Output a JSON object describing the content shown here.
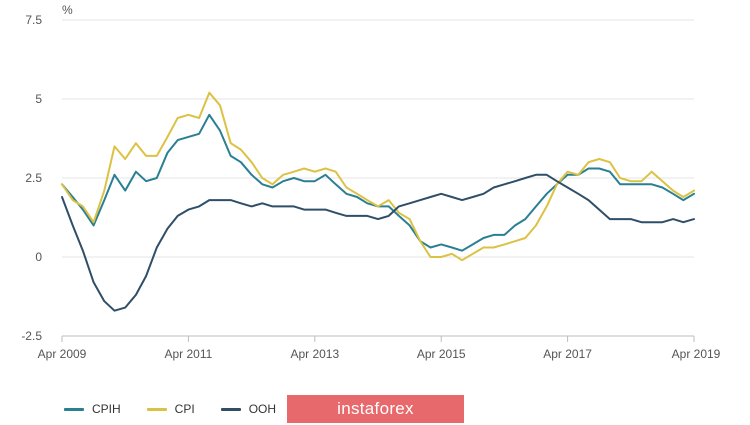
{
  "colors": {
    "CPIH": "#2a7f93",
    "CPI": "#dcc244",
    "OOH": "#2f4e68",
    "watermark_bg": "#e8696b"
  },
  "watermark": {
    "text": "instaforex"
  },
  "chart_data": {
    "type": "line",
    "title": "",
    "xlabel": "",
    "ylabel": "%",
    "ylim": [
      -2.5,
      7.5
    ],
    "xlim": [
      2009.25,
      2019.25
    ],
    "yticks": [
      -2.5,
      0,
      2.5,
      5,
      7.5
    ],
    "ytick_labels": [
      "-2.5",
      "0",
      "2.5",
      "5",
      "7.5"
    ],
    "xticks": [
      2009.25,
      2011.25,
      2013.25,
      2015.25,
      2017.25,
      2019.25
    ],
    "xtick_labels": [
      "Apr 2009",
      "Apr 2011",
      "Apr 2013",
      "Apr 2015",
      "Apr 2017",
      "Apr 2019"
    ],
    "grid": "horizontal",
    "legend_position": "bottom-left",
    "series": [
      {
        "name": "CPIH",
        "x": [
          2009.25,
          2009.42,
          2009.58,
          2009.75,
          2009.92,
          2010.08,
          2010.25,
          2010.42,
          2010.58,
          2010.75,
          2010.92,
          2011.08,
          2011.25,
          2011.42,
          2011.58,
          2011.75,
          2011.92,
          2012.08,
          2012.25,
          2012.42,
          2012.58,
          2012.75,
          2012.92,
          2013.08,
          2013.25,
          2013.42,
          2013.58,
          2013.75,
          2013.92,
          2014.08,
          2014.25,
          2014.42,
          2014.58,
          2014.75,
          2014.92,
          2015.08,
          2015.25,
          2015.42,
          2015.58,
          2015.75,
          2015.92,
          2016.08,
          2016.25,
          2016.42,
          2016.58,
          2016.75,
          2016.92,
          2017.08,
          2017.25,
          2017.42,
          2017.58,
          2017.75,
          2017.92,
          2018.08,
          2018.25,
          2018.42,
          2018.58,
          2018.75,
          2018.92,
          2019.08,
          2019.25
        ],
        "values": [
          2.3,
          1.9,
          1.5,
          1.0,
          1.8,
          2.6,
          2.1,
          2.7,
          2.4,
          2.5,
          3.3,
          3.7,
          3.8,
          3.9,
          4.5,
          4.0,
          3.2,
          3.0,
          2.6,
          2.3,
          2.2,
          2.4,
          2.5,
          2.4,
          2.4,
          2.6,
          2.3,
          2.0,
          1.9,
          1.7,
          1.6,
          1.6,
          1.3,
          1.0,
          0.5,
          0.3,
          0.4,
          0.3,
          0.2,
          0.4,
          0.6,
          0.7,
          0.7,
          1.0,
          1.2,
          1.6,
          2.0,
          2.3,
          2.6,
          2.6,
          2.8,
          2.8,
          2.7,
          2.3,
          2.3,
          2.3,
          2.3,
          2.2,
          2.0,
          1.8,
          2.0
        ]
      },
      {
        "name": "CPI",
        "x": [
          2009.25,
          2009.42,
          2009.58,
          2009.75,
          2009.92,
          2010.08,
          2010.25,
          2010.42,
          2010.58,
          2010.75,
          2010.92,
          2011.08,
          2011.25,
          2011.42,
          2011.58,
          2011.75,
          2011.92,
          2012.08,
          2012.25,
          2012.42,
          2012.58,
          2012.75,
          2012.92,
          2013.08,
          2013.25,
          2013.42,
          2013.58,
          2013.75,
          2013.92,
          2014.08,
          2014.25,
          2014.42,
          2014.58,
          2014.75,
          2014.92,
          2015.08,
          2015.25,
          2015.42,
          2015.58,
          2015.75,
          2015.92,
          2016.08,
          2016.25,
          2016.42,
          2016.58,
          2016.75,
          2016.92,
          2017.08,
          2017.25,
          2017.42,
          2017.58,
          2017.75,
          2017.92,
          2018.08,
          2018.25,
          2018.42,
          2018.58,
          2018.75,
          2018.92,
          2019.08,
          2019.25
        ],
        "values": [
          2.3,
          1.8,
          1.6,
          1.1,
          2.1,
          3.5,
          3.1,
          3.6,
          3.2,
          3.2,
          3.8,
          4.4,
          4.5,
          4.4,
          5.2,
          4.8,
          3.6,
          3.4,
          3.0,
          2.5,
          2.3,
          2.6,
          2.7,
          2.8,
          2.7,
          2.8,
          2.7,
          2.2,
          2.0,
          1.8,
          1.6,
          1.8,
          1.4,
          1.2,
          0.5,
          0.0,
          0.0,
          0.1,
          -0.1,
          0.1,
          0.3,
          0.3,
          0.4,
          0.5,
          0.6,
          1.0,
          1.6,
          2.3,
          2.7,
          2.6,
          3.0,
          3.1,
          3.0,
          2.5,
          2.4,
          2.4,
          2.7,
          2.4,
          2.1,
          1.9,
          2.1
        ]
      },
      {
        "name": "OOH",
        "x": [
          2009.25,
          2009.42,
          2009.58,
          2009.75,
          2009.92,
          2010.08,
          2010.25,
          2010.42,
          2010.58,
          2010.75,
          2010.92,
          2011.08,
          2011.25,
          2011.42,
          2011.58,
          2011.75,
          2011.92,
          2012.08,
          2012.25,
          2012.42,
          2012.58,
          2012.75,
          2012.92,
          2013.08,
          2013.25,
          2013.42,
          2013.58,
          2013.75,
          2013.92,
          2014.08,
          2014.25,
          2014.42,
          2014.58,
          2014.75,
          2014.92,
          2015.08,
          2015.25,
          2015.42,
          2015.58,
          2015.75,
          2015.92,
          2016.08,
          2016.25,
          2016.42,
          2016.58,
          2016.75,
          2016.92,
          2017.08,
          2017.25,
          2017.42,
          2017.58,
          2017.75,
          2017.92,
          2018.08,
          2018.25,
          2018.42,
          2018.58,
          2018.75,
          2018.92,
          2019.08,
          2019.25
        ],
        "values": [
          1.9,
          1.0,
          0.2,
          -0.8,
          -1.4,
          -1.7,
          -1.6,
          -1.2,
          -0.6,
          0.3,
          0.9,
          1.3,
          1.5,
          1.6,
          1.8,
          1.8,
          1.8,
          1.7,
          1.6,
          1.7,
          1.6,
          1.6,
          1.6,
          1.5,
          1.5,
          1.5,
          1.4,
          1.3,
          1.3,
          1.3,
          1.2,
          1.3,
          1.6,
          1.7,
          1.8,
          1.9,
          2.0,
          1.9,
          1.8,
          1.9,
          2.0,
          2.2,
          2.3,
          2.4,
          2.5,
          2.6,
          2.6,
          2.4,
          2.2,
          2.0,
          1.8,
          1.5,
          1.2,
          1.2,
          1.2,
          1.1,
          1.1,
          1.1,
          1.2,
          1.1,
          1.2
        ]
      }
    ]
  }
}
